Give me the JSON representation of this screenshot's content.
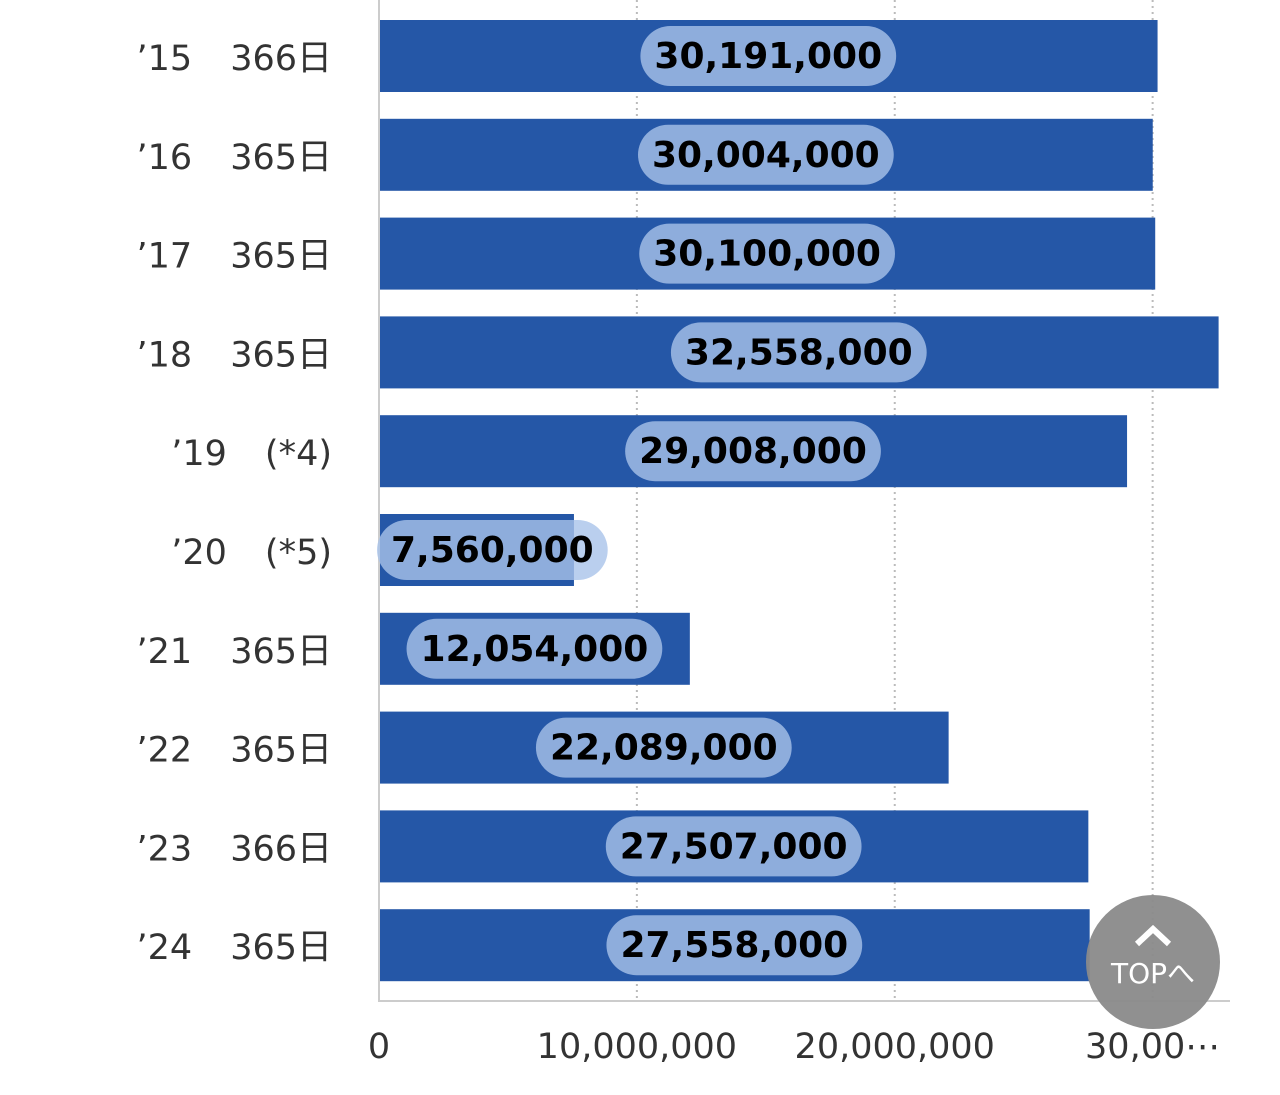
{
  "chart_data": {
    "type": "barh",
    "categories": [
      "’15",
      "’16",
      "’17",
      "’18",
      "’19",
      "’20",
      "’21",
      "’22",
      "’23",
      "’24"
    ],
    "days": [
      "366日",
      "365日",
      "365日",
      "365日",
      "(*4)",
      "(*5)",
      "365日",
      "365日",
      "366日",
      "365日"
    ],
    "values": [
      30191000,
      30004000,
      30100000,
      32558000,
      29008000,
      7560000,
      12054000,
      22089000,
      27507000,
      27558000
    ],
    "value_labels": [
      "30,191,000",
      "30,004,000",
      "30,100,000",
      "32,558,000",
      "29,008,000",
      "7,560,000",
      "12,054,000",
      "22,089,000",
      "27,507,000",
      "27,558,000"
    ],
    "color": "#2557a7",
    "xlim": [
      0,
      33000000
    ],
    "xticks": [
      0,
      {
        "value": 10000000,
        "label": "10,000,000"
      },
      {
        "value": 20000000,
        "label": "20,000,000"
      },
      {
        "value": 30000000,
        "label": "30,00⋯"
      }
    ],
    "grid": true
  },
  "top_button": {
    "label": "TOPへ"
  }
}
